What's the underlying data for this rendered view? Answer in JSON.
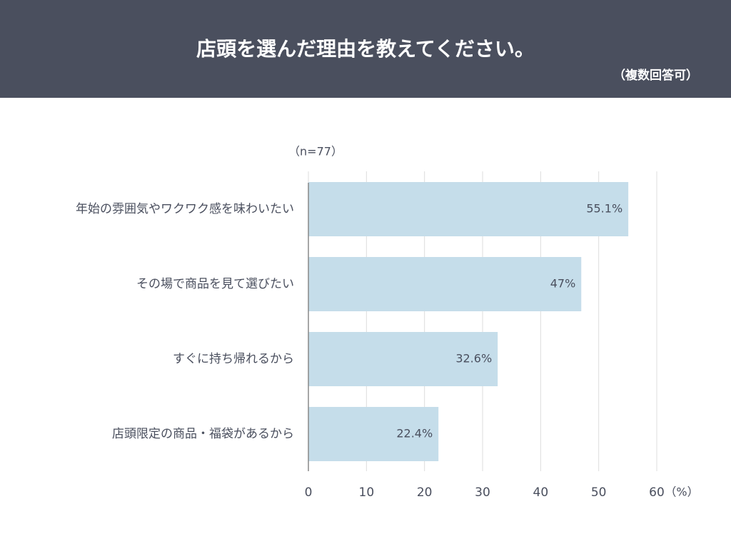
{
  "chart_data": {
    "type": "bar",
    "orientation": "horizontal",
    "title": "店頭を選んだ理由を教えてください。",
    "subtitle": "（複数回答可）",
    "note": "（n=77）",
    "x_unit": "（%）",
    "categories": [
      "年始の雰囲気やワクワク感を味わいたい",
      "その場で商品を見て選びたい",
      "すぐに持ち帰れるから",
      "店頭限定の商品・福袋があるから"
    ],
    "values": [
      55.1,
      47,
      32.6,
      22.4
    ],
    "value_labels": [
      "55.1%",
      "47%",
      "32.6%",
      "22.4%"
    ],
    "color": "#c5ddea",
    "xlim": [
      0,
      60
    ],
    "xticks": [
      0,
      10,
      20,
      30,
      40,
      50,
      60
    ],
    "grid": true
  }
}
